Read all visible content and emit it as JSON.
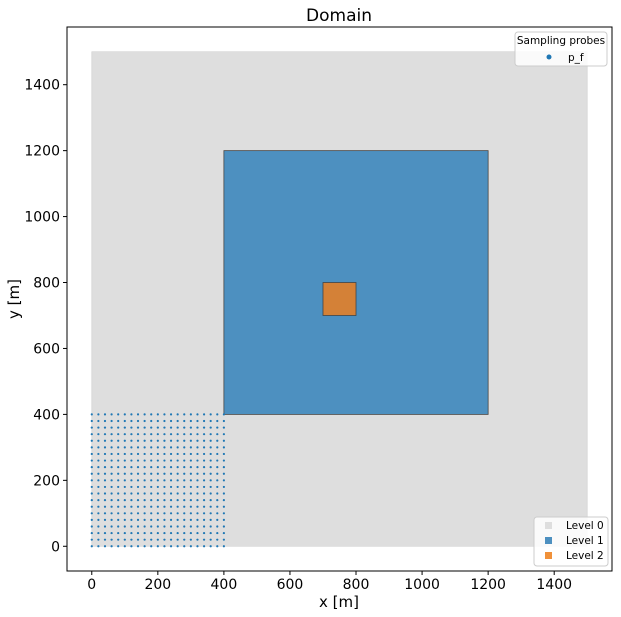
{
  "chart_data": {
    "type": "scatter",
    "title": "Domain",
    "xlabel": "x [m]",
    "ylabel": "y [m]",
    "xlim": [
      -75,
      1575
    ],
    "ylim": [
      -75,
      1575
    ],
    "x_ticks": [
      0,
      200,
      400,
      600,
      800,
      1000,
      1200,
      1400
    ],
    "y_ticks": [
      0,
      200,
      400,
      600,
      800,
      1000,
      1200,
      1400
    ],
    "x_tick_labels": [
      "0",
      "200",
      "400",
      "600",
      "800",
      "1000",
      "1200",
      "1400"
    ],
    "y_tick_labels": [
      "0",
      "200",
      "400",
      "600",
      "800",
      "1000",
      "1200",
      "1400"
    ],
    "grid": false,
    "levels": [
      {
        "name": "Level 0",
        "x0": 0,
        "x1": 1500,
        "y0": 0,
        "y1": 1500,
        "color": "#dedede"
      },
      {
        "name": "Level 1",
        "x0": 400,
        "x1": 1200,
        "y0": 400,
        "y1": 1200,
        "color": "#4d90c0"
      },
      {
        "name": "Level 2",
        "x0": 700,
        "x1": 800,
        "y0": 700,
        "y1": 800,
        "color": "#d48137"
      }
    ],
    "probes": {
      "name": "p_f",
      "x_start": 0,
      "x_end": 400,
      "x_count": 21,
      "y_start": 0,
      "y_end": 400,
      "y_count": 21,
      "color": "#1f77b4"
    },
    "levels_legend": {
      "placement": "lower-right",
      "entries": [
        "Level 0",
        "Level 1",
        "Level 2"
      ]
    },
    "probes_legend": {
      "placement": "upper-right",
      "title": "Sampling probes",
      "entries": [
        "p_f"
      ]
    }
  }
}
